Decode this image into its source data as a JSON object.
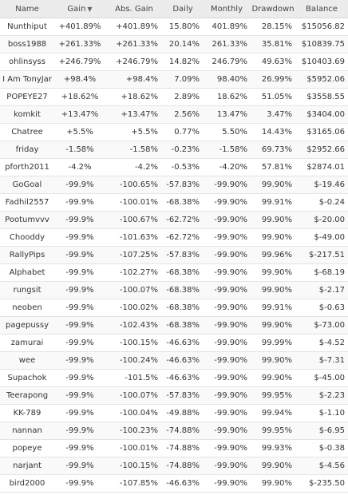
{
  "columns": {
    "name": "Name",
    "gain": "Gain",
    "abs_gain": "Abs. Gain",
    "daily": "Daily",
    "monthly": "Monthly",
    "drawdown": "Drawdown",
    "balance": "Balance",
    "sort_icon": "sort-desc-icon"
  },
  "colors": {
    "positive": "#118a11",
    "negative": "#d42626"
  },
  "rows": [
    {
      "name": "Nunthiput",
      "gain": "+401.89%",
      "abs_gain": "+401.89%",
      "daily": "15.80%",
      "monthly": "401.89%",
      "drawdown": "28.15%",
      "balance": "$15056.82"
    },
    {
      "name": "boss1988",
      "gain": "+261.33%",
      "abs_gain": "+261.33%",
      "daily": "20.14%",
      "monthly": "261.33%",
      "drawdown": "35.81%",
      "balance": "$10839.75"
    },
    {
      "name": "ohlinsyss",
      "gain": "+246.79%",
      "abs_gain": "+246.79%",
      "daily": "14.82%",
      "monthly": "246.79%",
      "drawdown": "49.63%",
      "balance": "$10403.69"
    },
    {
      "name": "I Am TonyJar",
      "gain": "+98.4%",
      "abs_gain": "+98.4%",
      "daily": "7.09%",
      "monthly": "98.40%",
      "drawdown": "26.99%",
      "balance": "$5952.06"
    },
    {
      "name": "POPEYE27",
      "gain": "+18.62%",
      "abs_gain": "+18.62%",
      "daily": "2.89%",
      "monthly": "18.62%",
      "drawdown": "51.05%",
      "balance": "$3558.55"
    },
    {
      "name": "komkit",
      "gain": "+13.47%",
      "abs_gain": "+13.47%",
      "daily": "2.56%",
      "monthly": "13.47%",
      "drawdown": "3.47%",
      "balance": "$3404.00"
    },
    {
      "name": "Chatree",
      "gain": "+5.5%",
      "abs_gain": "+5.5%",
      "daily": "0.77%",
      "monthly": "5.50%",
      "drawdown": "14.43%",
      "balance": "$3165.06"
    },
    {
      "name": "friday",
      "gain": "-1.58%",
      "abs_gain": "-1.58%",
      "daily": "-0.23%",
      "monthly": "-1.58%",
      "drawdown": "69.73%",
      "balance": "$2952.66"
    },
    {
      "name": "pforth2011",
      "gain": "-4.2%",
      "abs_gain": "-4.2%",
      "daily": "-0.53%",
      "monthly": "-4.20%",
      "drawdown": "57.81%",
      "balance": "$2874.01"
    },
    {
      "name": "GoGoal",
      "gain": "-99.9%",
      "abs_gain": "-100.65%",
      "daily": "-57.83%",
      "monthly": "-99.90%",
      "drawdown": "99.90%",
      "balance": "$-19.46"
    },
    {
      "name": "Fadhil2557",
      "gain": "-99.9%",
      "abs_gain": "-100.01%",
      "daily": "-68.38%",
      "monthly": "-99.90%",
      "drawdown": "99.91%",
      "balance": "$-0.24"
    },
    {
      "name": "Pootumvvv",
      "gain": "-99.9%",
      "abs_gain": "-100.67%",
      "daily": "-62.72%",
      "monthly": "-99.90%",
      "drawdown": "99.90%",
      "balance": "$-20.00"
    },
    {
      "name": "Chooddy",
      "gain": "-99.9%",
      "abs_gain": "-101.63%",
      "daily": "-62.72%",
      "monthly": "-99.90%",
      "drawdown": "99.90%",
      "balance": "$-49.00"
    },
    {
      "name": "RallyPips",
      "gain": "-99.9%",
      "abs_gain": "-107.25%",
      "daily": "-57.83%",
      "monthly": "-99.90%",
      "drawdown": "99.96%",
      "balance": "$-217.51"
    },
    {
      "name": "Alphabet",
      "gain": "-99.9%",
      "abs_gain": "-102.27%",
      "daily": "-68.38%",
      "monthly": "-99.90%",
      "drawdown": "99.90%",
      "balance": "$-68.19"
    },
    {
      "name": "rungsit",
      "gain": "-99.9%",
      "abs_gain": "-100.07%",
      "daily": "-68.38%",
      "monthly": "-99.90%",
      "drawdown": "99.90%",
      "balance": "$-2.17"
    },
    {
      "name": "neoben",
      "gain": "-99.9%",
      "abs_gain": "-100.02%",
      "daily": "-68.38%",
      "monthly": "-99.90%",
      "drawdown": "99.91%",
      "balance": "$-0.63"
    },
    {
      "name": "pagepussy",
      "gain": "-99.9%",
      "abs_gain": "-102.43%",
      "daily": "-68.38%",
      "monthly": "-99.90%",
      "drawdown": "99.90%",
      "balance": "$-73.00"
    },
    {
      "name": "zamurai",
      "gain": "-99.9%",
      "abs_gain": "-100.15%",
      "daily": "-46.63%",
      "monthly": "-99.90%",
      "drawdown": "99.99%",
      "balance": "$-4.52"
    },
    {
      "name": "wee",
      "gain": "-99.9%",
      "abs_gain": "-100.24%",
      "daily": "-46.63%",
      "monthly": "-99.90%",
      "drawdown": "99.90%",
      "balance": "$-7.31"
    },
    {
      "name": "Supachok",
      "gain": "-99.9%",
      "abs_gain": "-101.5%",
      "daily": "-46.63%",
      "monthly": "-99.90%",
      "drawdown": "99.90%",
      "balance": "$-45.00"
    },
    {
      "name": "Teerapong",
      "gain": "-99.9%",
      "abs_gain": "-100.07%",
      "daily": "-57.83%",
      "monthly": "-99.90%",
      "drawdown": "99.95%",
      "balance": "$-2.23"
    },
    {
      "name": "KK-789",
      "gain": "-99.9%",
      "abs_gain": "-100.04%",
      "daily": "-49.88%",
      "monthly": "-99.90%",
      "drawdown": "99.94%",
      "balance": "$-1.10"
    },
    {
      "name": "nannan",
      "gain": "-99.9%",
      "abs_gain": "-100.23%",
      "daily": "-74.88%",
      "monthly": "-99.90%",
      "drawdown": "99.95%",
      "balance": "$-6.95"
    },
    {
      "name": "popeye",
      "gain": "-99.9%",
      "abs_gain": "-100.01%",
      "daily": "-74.88%",
      "monthly": "-99.90%",
      "drawdown": "99.93%",
      "balance": "$-0.38"
    },
    {
      "name": "narjant",
      "gain": "-99.9%",
      "abs_gain": "-100.15%",
      "daily": "-74.88%",
      "monthly": "-99.90%",
      "drawdown": "99.90%",
      "balance": "$-4.56"
    },
    {
      "name": "bird2000",
      "gain": "-99.9%",
      "abs_gain": "-107.85%",
      "daily": "-46.63%",
      "monthly": "-99.90%",
      "drawdown": "99.90%",
      "balance": "$-235.50"
    }
  ]
}
